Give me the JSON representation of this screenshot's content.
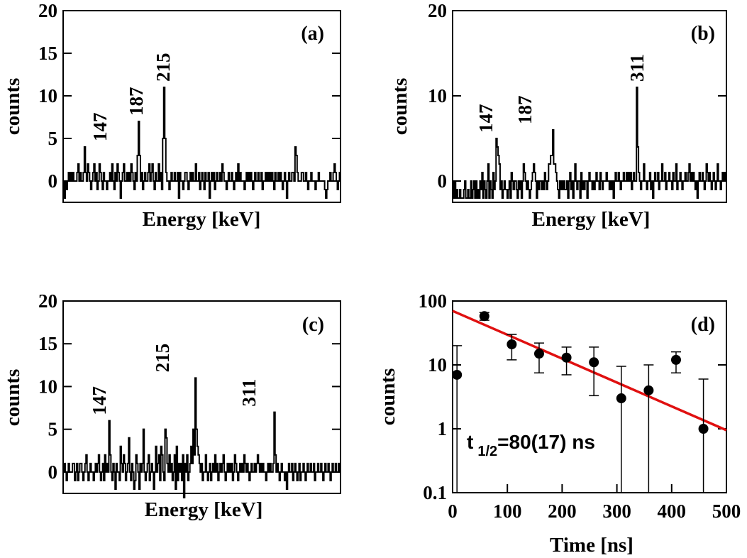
{
  "chart_data": [
    {
      "id": "a",
      "type": "histogram",
      "panel_label": "(a)",
      "xlabel": "Energy [keV]",
      "ylabel": "counts",
      "ylim": [
        -2.5,
        20
      ],
      "yticks": [
        "0",
        "5",
        "10",
        "15",
        "20"
      ],
      "peaks": [
        {
          "label": "147",
          "counts": 4
        },
        {
          "label": "187",
          "counts": 7
        },
        {
          "label": "215",
          "counts": 11
        }
      ],
      "counts": [
        0,
        -2,
        0,
        -1,
        0,
        1,
        0,
        1,
        0,
        1,
        0,
        0,
        0,
        1,
        2,
        0,
        1,
        0,
        0,
        1,
        4,
        1,
        0,
        2,
        1,
        0,
        -1,
        0,
        1,
        2,
        0,
        1,
        -1,
        0,
        2,
        1,
        0,
        -1,
        1,
        0,
        0,
        -1,
        0,
        0,
        1,
        0,
        2,
        0,
        -1,
        1,
        0,
        2,
        1,
        0,
        -2,
        0,
        1,
        2,
        0,
        0,
        1,
        0,
        1,
        0,
        2,
        1,
        0,
        -1,
        1,
        0,
        3,
        7,
        3,
        0,
        1,
        -1,
        0,
        1,
        0,
        0,
        1,
        2,
        0,
        1,
        2,
        0,
        -1,
        1,
        0,
        0,
        2,
        0,
        1,
        -1,
        5,
        11,
        5,
        1,
        0,
        0,
        -1,
        0,
        1,
        0,
        0,
        1,
        0,
        0,
        1,
        -2,
        1,
        0,
        0,
        -1,
        0,
        1,
        1,
        0,
        -1,
        0,
        1,
        0,
        1,
        0,
        0,
        2,
        0,
        0,
        1,
        -1,
        0,
        1,
        0,
        -1,
        1,
        0,
        0,
        1,
        -2,
        0,
        1,
        0,
        1,
        -1,
        0,
        1,
        0,
        0,
        1,
        0,
        2,
        1,
        0,
        0,
        -1,
        0,
        1,
        0,
        0,
        1,
        0,
        -1,
        0,
        1,
        0,
        2,
        0,
        1,
        0,
        0,
        0,
        -1,
        0,
        1,
        0,
        1,
        0,
        1,
        0,
        -1,
        0,
        1,
        0,
        0,
        1,
        0,
        0,
        1,
        -1,
        0,
        0,
        1,
        0,
        1,
        0,
        1,
        0,
        1,
        0,
        -1,
        1,
        0,
        0,
        1,
        0,
        1,
        0,
        -1,
        0,
        1,
        0,
        -2,
        0,
        1,
        0,
        0,
        1,
        1,
        0,
        4,
        3,
        1,
        0,
        0,
        0,
        1,
        1,
        0,
        0,
        1,
        0,
        -1,
        0,
        0,
        1,
        0,
        0,
        0,
        -1,
        0,
        0,
        1,
        0,
        0,
        0,
        0,
        0,
        -1,
        -2,
        -1,
        0,
        0,
        1,
        0,
        0,
        1,
        2,
        1,
        0,
        -1,
        0,
        1
      ]
    },
    {
      "id": "b",
      "type": "histogram",
      "panel_label": "(b)",
      "xlabel": "Energy [keV]",
      "ylabel": "counts",
      "ylim": [
        -2.5,
        20
      ],
      "yticks": [
        "0",
        "10",
        "20"
      ],
      "peaks": [
        {
          "label": "147",
          "counts": 5
        },
        {
          "label": "187",
          "counts": 6
        },
        {
          "label": "311",
          "counts": 11
        }
      ],
      "counts": [
        0,
        -2,
        0,
        -2,
        -1,
        -2,
        -2,
        -1,
        -2,
        -2,
        -2,
        -1,
        0,
        -2,
        -2,
        -1,
        -2,
        -2,
        0,
        -2,
        -1,
        0,
        -2,
        0,
        -2,
        -1,
        -2,
        0,
        -1,
        1,
        -2,
        0,
        -1,
        -2,
        0,
        2,
        -2,
        0,
        -1,
        -2,
        1,
        -1,
        0,
        5,
        4,
        3,
        2,
        -1,
        0,
        -2,
        -1,
        0,
        -1,
        -1,
        -2,
        -1,
        0,
        -2,
        1,
        0,
        -1,
        0,
        0,
        -1,
        -2,
        0,
        -1,
        0,
        -2,
        0,
        2,
        1,
        0,
        -1,
        0,
        -1,
        -2,
        -1,
        0,
        1,
        2,
        1,
        0,
        -2,
        0,
        -1,
        0,
        0,
        -1,
        0,
        -1,
        1,
        0,
        -1,
        0,
        2,
        2,
        3,
        3,
        6,
        2,
        2,
        1,
        0,
        -1,
        -2,
        0,
        -1,
        0,
        -1,
        0,
        -1,
        -1,
        0,
        -2,
        0,
        1,
        -1,
        0,
        -2,
        0,
        2,
        0,
        -1,
        0,
        0,
        -2,
        1,
        -1,
        0,
        -1,
        0,
        0,
        -2,
        0,
        1,
        0,
        0,
        -1,
        0,
        -1,
        0,
        1,
        0,
        0,
        -1,
        1,
        0,
        -1,
        0,
        0,
        0,
        1,
        0,
        0,
        -1,
        0,
        -1,
        0,
        -2,
        0,
        1,
        0,
        0,
        1,
        0,
        -1,
        0,
        0,
        1,
        0,
        0,
        1,
        0,
        1,
        0,
        1,
        -1,
        0,
        1,
        0,
        0,
        11,
        4,
        1,
        0,
        -1,
        0,
        0,
        2,
        0,
        0,
        -1,
        0,
        0,
        1,
        -1,
        0,
        -2,
        0,
        1,
        0,
        0,
        1,
        -1,
        0,
        0,
        2,
        0,
        0,
        1,
        -1,
        0,
        0,
        1,
        0,
        0,
        -1,
        1,
        0,
        0,
        2,
        -1,
        0,
        0,
        1,
        0,
        -1,
        0,
        0,
        1,
        0,
        0,
        1,
        2,
        0,
        1,
        0,
        1,
        0,
        -1,
        0,
        -2,
        0,
        1,
        0,
        0,
        1,
        0,
        -1,
        0,
        2,
        1,
        0,
        1,
        0,
        -1,
        0,
        1,
        0,
        -1,
        0,
        2,
        0,
        0,
        -1,
        0,
        1,
        0,
        1,
        0
      ]
    },
    {
      "id": "c",
      "type": "histogram",
      "panel_label": "(c)",
      "xlabel": "Energy [keV]",
      "ylabel": "counts",
      "ylim": [
        -2.5,
        20
      ],
      "yticks": [
        "0",
        "5",
        "10",
        "15",
        "20"
      ],
      "peaks": [
        {
          "label": "147",
          "counts": 6
        },
        {
          "label": "215",
          "counts": 11
        },
        {
          "label": "311",
          "counts": 7
        }
      ],
      "counts": [
        0,
        1,
        0,
        -1,
        0,
        1,
        0,
        0,
        0,
        1,
        1,
        -1,
        0,
        1,
        -1,
        0,
        1,
        1,
        0,
        -1,
        0,
        1,
        2,
        0,
        -1,
        0,
        1,
        0,
        0,
        -1,
        0,
        1,
        0,
        1,
        2,
        0,
        -1,
        0,
        1,
        -1,
        2,
        0,
        1,
        0,
        6,
        2,
        0,
        -1,
        1,
        0,
        -2,
        1,
        0,
        0,
        -1,
        3,
        1,
        0,
        2,
        1,
        -1,
        0,
        1,
        4,
        0,
        -1,
        1,
        0,
        -2,
        -1,
        2,
        1,
        0,
        -2,
        1,
        0,
        1,
        5,
        0,
        -1,
        0,
        1,
        2,
        -1,
        0,
        1,
        0,
        -2,
        0,
        3,
        0,
        1,
        2,
        -1,
        3,
        2,
        0,
        -1,
        5,
        4,
        1,
        0,
        2,
        0,
        1,
        -1,
        0,
        2,
        -2,
        3,
        -1,
        1,
        0,
        1,
        -1,
        2,
        -3,
        1,
        0,
        2,
        -1,
        0,
        1,
        3,
        1,
        5,
        2,
        11,
        5,
        3,
        2,
        1,
        0,
        1,
        -1,
        0,
        0,
        2,
        0,
        -1,
        0,
        1,
        -1,
        0,
        1,
        0,
        2,
        0,
        1,
        -1,
        0,
        1,
        0,
        1,
        2,
        0,
        -1,
        0,
        1,
        0,
        1,
        0,
        1,
        -1,
        0,
        2,
        1,
        0,
        -1,
        0,
        1,
        0,
        1,
        0,
        2,
        1,
        0,
        1,
        0,
        -1,
        0,
        1,
        0,
        0,
        1,
        0,
        1,
        2,
        1,
        0,
        1,
        0,
        1,
        0,
        0,
        -1,
        0,
        1,
        0,
        1,
        0,
        0,
        1,
        7,
        2,
        0,
        1,
        0,
        -1,
        0,
        1,
        0,
        0,
        -1,
        0,
        -2,
        0,
        1,
        0,
        0,
        1,
        -1,
        0,
        1,
        0,
        -1,
        0,
        1,
        -1,
        0,
        0,
        1,
        0,
        -1,
        0,
        1,
        0,
        0,
        1,
        0,
        0,
        1,
        -1,
        0,
        0,
        1,
        0,
        0,
        1,
        0,
        -1,
        0,
        1,
        0,
        0,
        1,
        0,
        -1,
        0,
        1,
        0,
        0,
        1,
        0,
        0,
        1,
        0
      ]
    },
    {
      "id": "d",
      "type": "scatter",
      "panel_label": "(d)",
      "xlabel": "Time [ns]",
      "ylabel": "counts",
      "yscale": "log",
      "xlim": [
        0,
        500
      ],
      "ylim": [
        0.1,
        100
      ],
      "xticks": [
        "0",
        "100",
        "200",
        "300",
        "400",
        "500"
      ],
      "yticks": [
        "0.1",
        "1",
        "10",
        "100"
      ],
      "points": [
        {
          "x": 8,
          "y": 7,
          "ylow": 0.1,
          "yhigh": 20
        },
        {
          "x": 58,
          "y": 58,
          "ylow": 50,
          "yhigh": 66
        },
        {
          "x": 108,
          "y": 21,
          "ylow": 12,
          "yhigh": 30
        },
        {
          "x": 158,
          "y": 15,
          "ylow": 7.5,
          "yhigh": 22
        },
        {
          "x": 208,
          "y": 13,
          "ylow": 7,
          "yhigh": 19
        },
        {
          "x": 258,
          "y": 11,
          "ylow": 3.3,
          "yhigh": 19
        },
        {
          "x": 308,
          "y": 3,
          "ylow": 0.1,
          "yhigh": 9.5
        },
        {
          "x": 358,
          "y": 4,
          "ylow": 0.1,
          "yhigh": 10
        },
        {
          "x": 408,
          "y": 12,
          "ylow": 7.5,
          "yhigh": 16
        },
        {
          "x": 458,
          "y": 1,
          "ylow": 0.1,
          "yhigh": 6
        }
      ],
      "fit": {
        "color": "#e01010",
        "x0": 0,
        "y0": 70,
        "x1": 500,
        "y1": 0.95
      },
      "annotation_main": "t",
      "annotation_sub": "1/2",
      "annotation_rest": "=80(17) ns"
    }
  ]
}
